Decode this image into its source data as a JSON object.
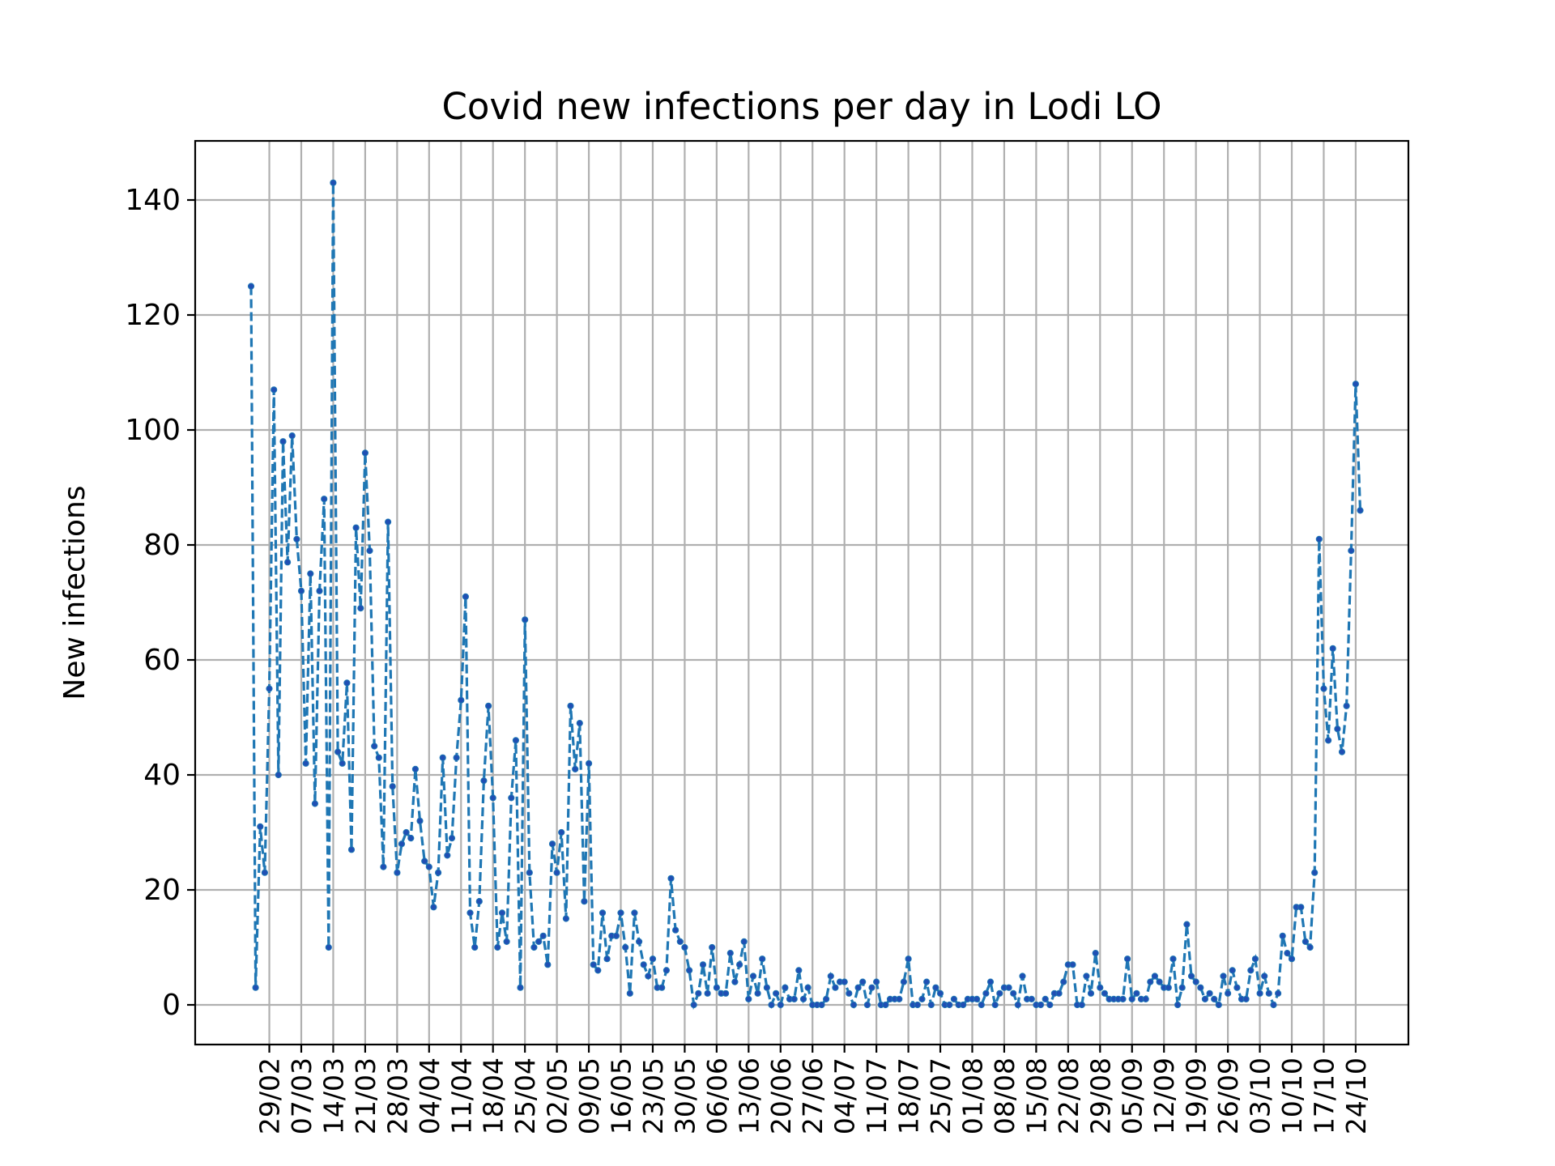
{
  "chart_data": {
    "type": "line",
    "title": "Covid new infections per day in Lodi LO",
    "xlabel": "",
    "ylabel": "New infections",
    "ylim": [
      -7,
      150
    ],
    "yticks": [
      0,
      20,
      40,
      60,
      80,
      100,
      120,
      140
    ],
    "grid": true,
    "line_style": "dashed",
    "marker": "dot",
    "color": "#1f77b4",
    "start_date": "2020-02-25",
    "x_tick_labels": [
      "29/02",
      "07/03",
      "14/03",
      "21/03",
      "28/03",
      "04/04",
      "11/04",
      "18/04",
      "25/04",
      "02/05",
      "09/05",
      "16/05",
      "23/05",
      "30/05",
      "06/06",
      "13/06",
      "20/06",
      "27/06",
      "04/07",
      "11/07",
      "18/07",
      "25/07",
      "01/08",
      "08/08",
      "15/08",
      "22/08",
      "29/08",
      "05/09",
      "12/09",
      "19/09",
      "26/09",
      "03/10",
      "10/10",
      "17/10",
      "24/10"
    ],
    "series": [
      {
        "values": [
          125,
          3,
          31,
          23,
          55,
          107,
          40,
          98,
          77,
          99,
          81,
          72,
          42,
          75,
          35,
          72,
          88,
          10,
          143,
          44,
          42,
          56,
          27,
          83,
          69,
          96,
          79,
          45,
          43,
          24,
          84,
          38,
          23,
          28,
          30,
          29,
          41,
          32,
          25,
          24,
          17,
          23,
          43,
          26,
          29,
          43,
          53,
          71,
          16,
          10,
          18,
          39,
          52,
          36,
          10,
          16,
          11,
          36,
          46,
          3,
          67,
          23,
          10,
          11,
          12,
          7,
          28,
          23,
          30,
          15,
          52,
          41,
          49,
          18,
          42,
          7,
          6,
          16,
          8,
          12,
          12,
          16,
          10,
          2,
          16,
          11,
          7,
          5,
          8,
          3,
          3,
          6,
          22,
          13,
          11,
          10,
          6,
          0,
          2,
          7,
          2,
          10,
          3,
          2,
          2,
          9,
          4,
          7,
          11,
          1,
          5,
          2,
          8,
          3,
          0,
          2,
          0,
          3,
          1,
          1,
          6,
          1,
          3,
          0,
          0,
          0,
          1,
          5,
          3,
          4,
          4,
          2,
          0,
          3,
          4,
          0,
          3,
          4,
          0,
          0,
          1,
          1,
          1,
          4,
          8,
          0,
          0,
          1,
          4,
          0,
          3,
          2,
          0,
          0,
          1,
          0,
          0,
          1,
          1,
          1,
          0,
          2,
          4,
          0,
          2,
          3,
          3,
          2,
          0,
          5,
          1,
          1,
          0,
          0,
          1,
          0,
          2,
          2,
          4,
          7,
          7,
          0,
          0,
          5,
          2,
          9,
          3,
          2,
          1,
          1,
          1,
          1,
          8,
          1,
          2,
          1,
          1,
          4,
          5,
          4,
          3,
          3,
          8,
          0,
          3,
          14,
          5,
          4,
          3,
          1,
          2,
          1,
          0,
          5,
          2,
          6,
          3,
          1,
          1,
          6,
          8,
          2,
          5,
          2,
          0,
          2,
          12,
          9,
          8,
          17,
          17,
          11,
          10,
          23,
          81,
          55,
          46,
          62,
          48,
          44,
          52,
          79,
          108,
          86
        ]
      }
    ]
  }
}
